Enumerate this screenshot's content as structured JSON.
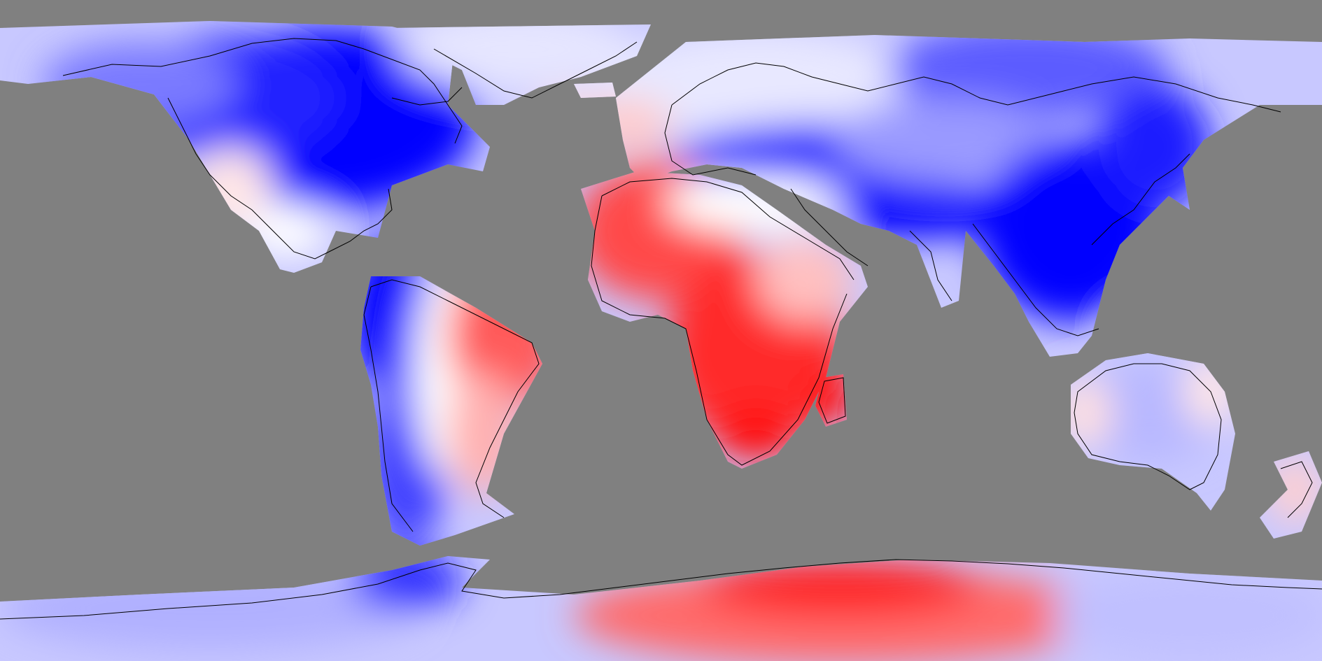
{
  "map": {
    "projection": "equirectangular",
    "ocean_color": "#808080",
    "coastline_color": "#000000",
    "palette": {
      "strong_negative": "#0000ff",
      "negative": "#7878ff",
      "weak_negative": "#dcdcff",
      "neutral": "#ffffff",
      "weak_positive": "#ffd2d2",
      "positive": "#ff7070",
      "strong_positive": "#ff1a1a"
    },
    "regions": [
      {
        "name": "north-america",
        "sign": "negative"
      },
      {
        "name": "greenland",
        "sign": "weak-negative"
      },
      {
        "name": "south-america-west",
        "sign": "negative"
      },
      {
        "name": "south-america-east",
        "sign": "positive"
      },
      {
        "name": "africa",
        "sign": "positive"
      },
      {
        "name": "madagascar",
        "sign": "strong-positive"
      },
      {
        "name": "europe",
        "sign": "weak-negative"
      },
      {
        "name": "asia",
        "sign": "negative"
      },
      {
        "name": "southeast-asia",
        "sign": "strong-negative"
      },
      {
        "name": "australia",
        "sign": "weak-negative"
      },
      {
        "name": "new-zealand",
        "sign": "weak-positive"
      },
      {
        "name": "antarctica-east",
        "sign": "positive"
      },
      {
        "name": "antarctica-west",
        "sign": "weak-negative"
      }
    ]
  }
}
